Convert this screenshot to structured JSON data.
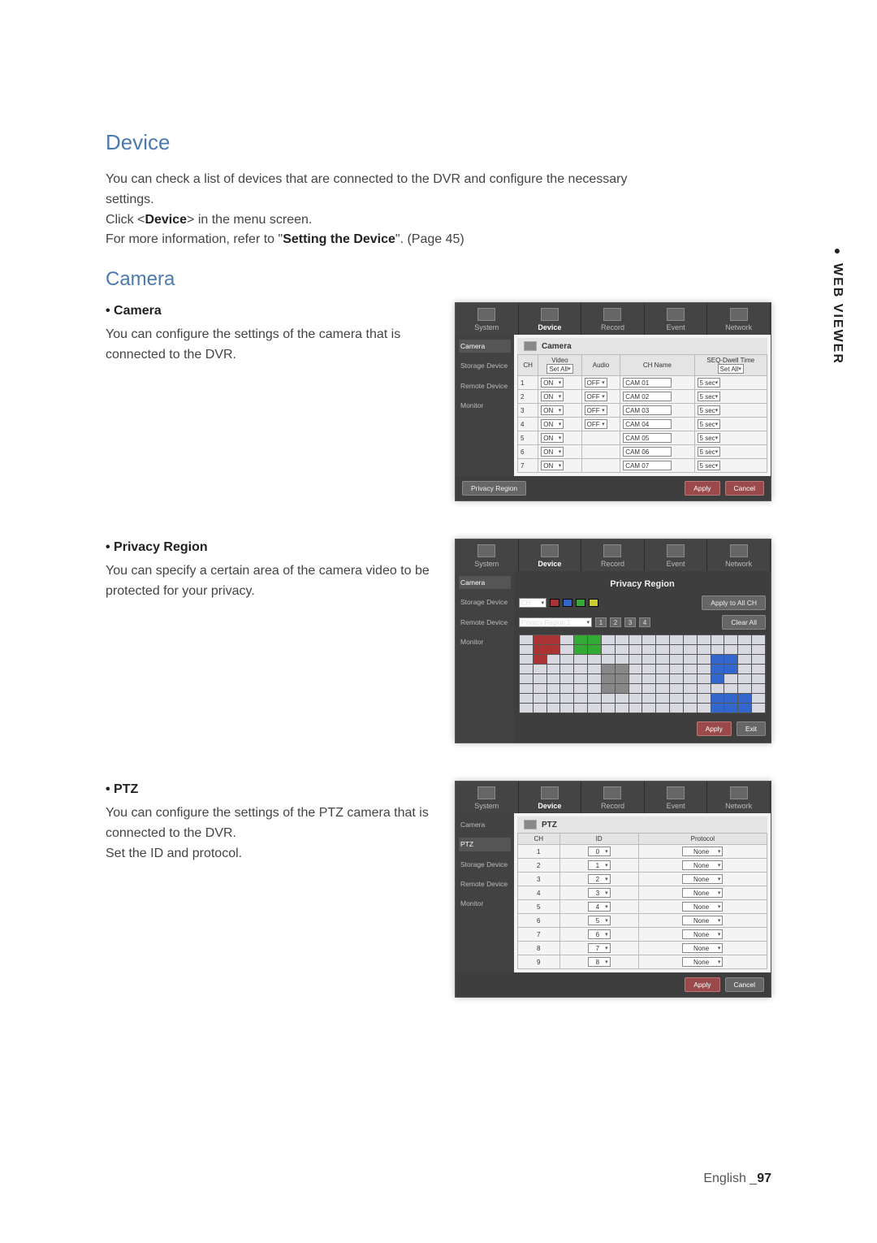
{
  "side_tab": "WEB VIEWER",
  "headings": {
    "device": "Device",
    "camera": "Camera"
  },
  "intro": {
    "line1": "You can check a list of devices that are connected to the DVR and configure the necessary settings.",
    "line2_pre": "Click <",
    "line2_bold": "Device",
    "line2_post": "> in the menu screen.",
    "line3_pre": "For more information, refer to \"",
    "line3_bold": "Setting the Device",
    "line3_post": "\". (Page 45)"
  },
  "sections": {
    "camera": {
      "bullet": "• Camera",
      "text": "You can configure the settings of the camera that is connected to the DVR."
    },
    "privacy": {
      "bullet": "• Privacy Region",
      "text": "You can specify a certain area of the camera video to be protected for your privacy."
    },
    "ptz": {
      "bullet": "• PTZ",
      "text1": "You can configure the settings of the PTZ camera that is connected to the DVR.",
      "text2": "Set the ID and protocol."
    }
  },
  "footer": {
    "lang": "English",
    "sep": "_",
    "page": "97"
  },
  "ui_common": {
    "tabs": [
      "System",
      "Device",
      "Record",
      "Event",
      "Network"
    ],
    "side_items": [
      "Camera",
      "Storage Device",
      "Remote Device",
      "Monitor"
    ],
    "apply": "Apply",
    "cancel": "Cancel",
    "exit": "Exit"
  },
  "camera_shot": {
    "title": "Camera",
    "columns": [
      "CH",
      "Video",
      "Audio",
      "CH Name",
      "SEQ-Dwell Time"
    ],
    "set_all": "Set All",
    "rows": [
      {
        "ch": "1",
        "video": "ON",
        "audio": "OFF",
        "name": "CAM 01",
        "dwell": "5 sec"
      },
      {
        "ch": "2",
        "video": "ON",
        "audio": "OFF",
        "name": "CAM 02",
        "dwell": "5 sec"
      },
      {
        "ch": "3",
        "video": "ON",
        "audio": "OFF",
        "name": "CAM 03",
        "dwell": "5 sec"
      },
      {
        "ch": "4",
        "video": "ON",
        "audio": "OFF",
        "name": "CAM 04",
        "dwell": "5 sec"
      },
      {
        "ch": "5",
        "video": "ON",
        "audio": "",
        "name": "CAM 05",
        "dwell": "5 sec"
      },
      {
        "ch": "6",
        "video": "ON",
        "audio": "",
        "name": "CAM 06",
        "dwell": "5 sec"
      },
      {
        "ch": "7",
        "video": "ON",
        "audio": "",
        "name": "CAM 07",
        "dwell": "5 sec"
      }
    ],
    "privacy_btn": "Privacy Region"
  },
  "privacy_shot": {
    "title": "Privacy Region",
    "ch_label": "CH",
    "apply_all": "Apply to All CH",
    "region_label": "Privacy Region 1",
    "clear_all": "Clear All",
    "nums": [
      "1",
      "2",
      "3",
      "4"
    ]
  },
  "ptz_shot": {
    "title": "PTZ",
    "side_items": [
      "Camera",
      "PTZ",
      "Storage Device",
      "Remote Device",
      "Monitor"
    ],
    "columns": [
      "CH",
      "ID",
      "Protocol"
    ],
    "rows": [
      {
        "ch": "1",
        "id": "0",
        "proto": "None"
      },
      {
        "ch": "2",
        "id": "1",
        "proto": "None"
      },
      {
        "ch": "3",
        "id": "2",
        "proto": "None"
      },
      {
        "ch": "4",
        "id": "3",
        "proto": "None"
      },
      {
        "ch": "5",
        "id": "4",
        "proto": "None"
      },
      {
        "ch": "6",
        "id": "5",
        "proto": "None"
      },
      {
        "ch": "7",
        "id": "6",
        "proto": "None"
      },
      {
        "ch": "8",
        "id": "7",
        "proto": "None"
      },
      {
        "ch": "9",
        "id": "8",
        "proto": "None"
      }
    ]
  },
  "colors": {
    "heading": "#4a7ab0",
    "panel_bg": "#3a3a3a",
    "accent_btn": "#9a4a4a"
  }
}
